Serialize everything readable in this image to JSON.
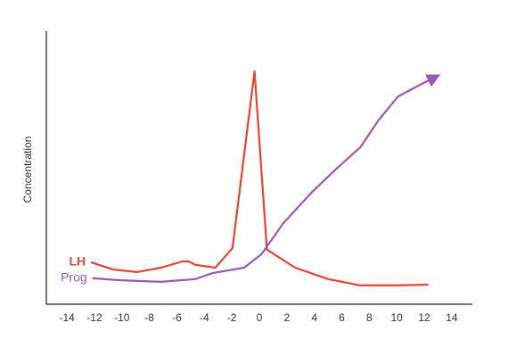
{
  "chart_data": {
    "type": "line",
    "y_label": "Concentration",
    "xlim": [
      -15.5,
      15.5
    ],
    "xticks": [
      -14,
      -12,
      -10,
      -8,
      -6,
      -4,
      -2,
      0,
      2,
      4,
      6,
      8,
      10,
      12,
      14
    ],
    "ylim": [
      0,
      100
    ],
    "series": [
      {
        "name": "LH",
        "color": "#e8432f",
        "x": [
          -12.25,
          -10.65,
          -8.9,
          -7.15,
          -5.6,
          -5.15,
          -4.65,
          -3.2,
          -1.95,
          -0.35,
          0.55,
          2.6,
          5.0,
          7.35,
          10.1,
          12.3
        ],
        "values": [
          15.4,
          12.7,
          11.8,
          13.4,
          15.7,
          15.7,
          14.4,
          13.4,
          20.6,
          85.3,
          20.0,
          13.4,
          9.2,
          6.9,
          6.9,
          7.2
        ]
      },
      {
        "name": "Prog",
        "color": "#9b59b6",
        "arrow": true,
        "x": [
          -12.15,
          -10.1,
          -7.15,
          -4.65,
          -3.4,
          -1.1,
          0.15,
          1.75,
          3.85,
          5.75,
          7.35,
          8.65,
          10.1,
          11.7,
          13.0
        ],
        "values": [
          9.5,
          8.8,
          8.2,
          9.2,
          11.4,
          13.4,
          18.3,
          29.7,
          41.2,
          50.3,
          57.5,
          67.3,
          76.1,
          80.4,
          83.7
        ]
      }
    ]
  }
}
